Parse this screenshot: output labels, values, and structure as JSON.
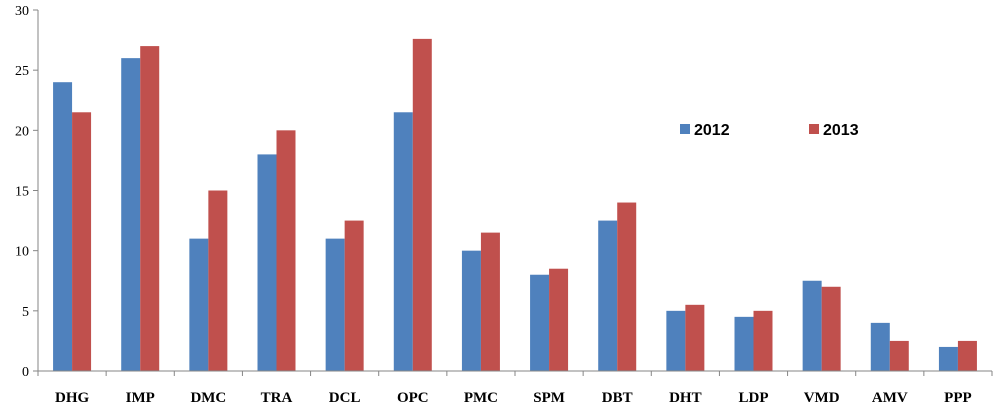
{
  "chart_data": {
    "type": "bar",
    "title": "",
    "xlabel": "",
    "ylabel": "",
    "ylim": [
      0,
      30
    ],
    "yticks": [
      0,
      5,
      10,
      15,
      20,
      25,
      30
    ],
    "grid": false,
    "legend_position": "right",
    "categories": [
      "DHG",
      "IMP",
      "DMC",
      "TRA",
      "DCL",
      "OPC",
      "PMC",
      "SPM",
      "DBT",
      "DHT",
      "LDP",
      "VMD",
      "AMV",
      "PPP"
    ],
    "series": [
      {
        "name": "2012",
        "color": "#4f81bd",
        "values": [
          24,
          26,
          11,
          18,
          11,
          21.5,
          10,
          8,
          12.5,
          5,
          4.5,
          7.5,
          4,
          2
        ]
      },
      {
        "name": "2013",
        "color": "#c0504d",
        "values": [
          21.5,
          27,
          15,
          20,
          12.5,
          27.6,
          11.5,
          8.5,
          14,
          5.5,
          5,
          7,
          2.5,
          2.5
        ]
      }
    ]
  }
}
